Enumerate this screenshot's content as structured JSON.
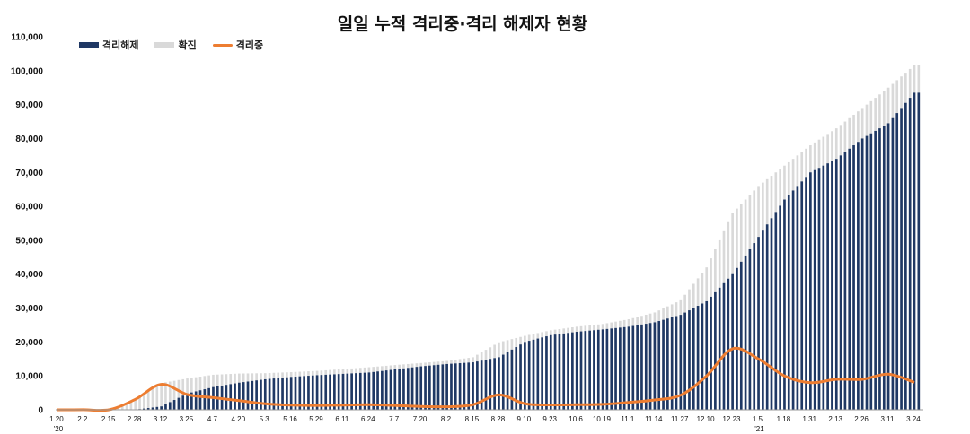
{
  "chart_data": {
    "type": "bar",
    "title": "일일 누적 격리중·격리 해제자 현황",
    "xlabel": "",
    "ylabel": "",
    "ylim": [
      0,
      110000
    ],
    "yticks": [
      0,
      10000,
      20000,
      30000,
      40000,
      50000,
      60000,
      70000,
      80000,
      90000,
      100000,
      110000
    ],
    "ytick_labels": [
      "0",
      "10,000",
      "20,000",
      "30,000",
      "40,000",
      "50,000",
      "60,000",
      "70,000",
      "80,000",
      "90,000",
      "100,000",
      "110,000"
    ],
    "xtick_labels": [
      "1.20.",
      "2.2.",
      "2.15.",
      "2.28.",
      "3.12.",
      "3.25.",
      "4.7.",
      "4.20.",
      "5.3.",
      "5.16.",
      "5.29.",
      "6.11.",
      "6.24.",
      "7.7.",
      "7.20.",
      "8.2.",
      "8.15.",
      "8.28.",
      "9.10.",
      "9.23.",
      "10.6.",
      "10.19.",
      "11.1.",
      "11.14.",
      "11.27.",
      "12.10.",
      "12.23.",
      "1.5.",
      "1.18.",
      "1.31.",
      "2.13.",
      "2.26.",
      "3.11.",
      "3.24."
    ],
    "year_labels": [
      {
        "tick": 0,
        "label": "'20"
      },
      {
        "tick": 27,
        "label": "'21"
      }
    ],
    "grid": false,
    "legend": "top-left",
    "colors": {
      "released": "#1f3864",
      "confirmed": "#d9d9d9",
      "isolating": "#ed7d31"
    },
    "series": [
      {
        "name": "격리해제",
        "kind": "bar",
        "values": [
          0,
          0,
          0,
          30,
          1000,
          4800,
          6700,
          8000,
          9000,
          9700,
          10200,
          10600,
          11000,
          11900,
          12800,
          13500,
          14000,
          15500,
          20000,
          22000,
          23000,
          23700,
          24500,
          25800,
          28000,
          32000,
          40000,
          51000,
          62000,
          70000,
          74000,
          80000,
          84500,
          93500
        ]
      },
      {
        "name": "확진",
        "kind": "bar",
        "values": [
          1,
          15,
          28,
          3150,
          7870,
          9240,
          10330,
          10690,
          10800,
          11100,
          11470,
          12000,
          12550,
          13200,
          13800,
          14400,
          15500,
          19900,
          21800,
          23450,
          24500,
          25300,
          26700,
          28700,
          32300,
          42000,
          58000,
          66000,
          72000,
          78000,
          83000,
          89000,
          95000,
          101600
        ]
      },
      {
        "name": "격리중",
        "kind": "line",
        "values": [
          1,
          15,
          28,
          3100,
          7500,
          4500,
          3600,
          2700,
          1800,
          1400,
          1300,
          1400,
          1500,
          1300,
          1000,
          900,
          1500,
          4400,
          1800,
          1450,
          1500,
          1600,
          2200,
          2900,
          4300,
          10000,
          18000,
          15000,
          10000,
          8000,
          9000,
          9000,
          10500,
          8100
        ]
      }
    ]
  }
}
